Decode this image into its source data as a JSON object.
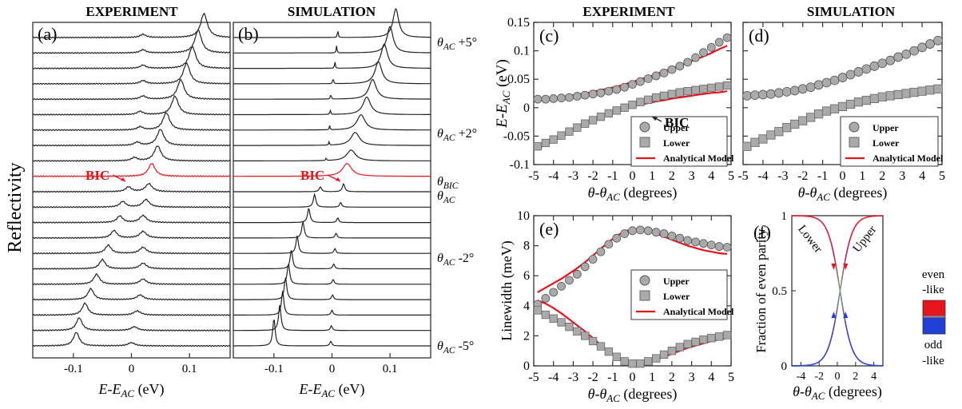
{
  "figure": {
    "headers": {
      "a": "EXPERIMENT",
      "b": "SIMULATION",
      "c": "EXPERIMENT",
      "d": "SIMULATION"
    },
    "left_ylabel": "Reflectivity"
  },
  "chart_data": [
    {
      "panel": "(a)",
      "type": "line",
      "title": "EXPERIMENT",
      "xlabel": "E-E_AC (eV)",
      "ylabel": "Reflectivity",
      "xlim": [
        -0.17,
        0.17
      ],
      "xticks": [
        "-0.1",
        "0",
        "0.1"
      ],
      "annotations": [
        "BIC"
      ],
      "highlight_color": "#e8141c",
      "series_description": "21 stacked reflectivity spectra, angle from θ_AC+5° (top) to θ_AC-5° (bottom); red trace at θ_BIC",
      "upper_peak_eV": [
        0.125,
        0.115,
        0.105,
        0.095,
        0.085,
        0.075,
        0.06,
        0.05,
        0.045,
        0.035,
        0.03,
        0.025,
        0.02,
        0.02,
        0.02,
        0.02,
        0.02,
        0.015,
        0.01,
        0.005,
        0.0
      ],
      "lower_peak_eV": [
        0.02,
        0.02,
        0.02,
        0.02,
        0.02,
        0.015,
        0.015,
        0.01,
        0.005,
        0.0,
        -0.005,
        -0.015,
        -0.02,
        -0.03,
        -0.04,
        -0.05,
        -0.06,
        -0.07,
        -0.08,
        -0.09,
        -0.095
      ]
    },
    {
      "panel": "(b)",
      "type": "line",
      "title": "SIMULATION",
      "xlabel": "E-E_AC (eV)",
      "xlim": [
        -0.17,
        0.17
      ],
      "xticks": [
        "-0.1",
        "0",
        "0.1"
      ],
      "angle_labels": [
        "θAC +5°",
        "θAC +2°",
        "θBIC",
        "θAC",
        "θAC -2°",
        "θAC -5°"
      ],
      "annotations": [
        "BIC"
      ],
      "upper_peak_eV": [
        0.11,
        0.1,
        0.09,
        0.08,
        0.07,
        0.06,
        0.05,
        0.04,
        0.033,
        0.026,
        0.02,
        0.015,
        0.01,
        0.007,
        0.005,
        0.003,
        0.002,
        0.001,
        0.0,
        -0.001,
        -0.002
      ],
      "lower_peak_eV": [
        0.01,
        0.008,
        0.005,
        0.002,
        -0.002,
        -0.003,
        -0.004,
        -0.005,
        -0.01,
        -0.015,
        -0.02,
        -0.03,
        -0.04,
        -0.05,
        -0.06,
        -0.07,
        -0.075,
        -0.08,
        -0.085,
        -0.09,
        -0.1
      ]
    },
    {
      "panel": "(c)",
      "type": "scatter",
      "title": "EXPERIMENT",
      "xlabel": "θ-θAC (degrees)",
      "ylabel": "E-EAC (eV)",
      "xlim": [
        -5,
        5
      ],
      "ylim": [
        -0.1,
        0.15
      ],
      "xticks": [
        -5,
        -4,
        -3,
        -2,
        -1,
        0,
        1,
        2,
        3,
        4,
        5
      ],
      "yticks": [
        "-0.1",
        "-0.05",
        "0",
        "0.05",
        "0.1",
        "0.15"
      ],
      "annotations": [
        "BIC"
      ],
      "legend": [
        "Upper",
        "Lower",
        "Analytical Model"
      ],
      "legend_placement": "bottom-right",
      "x": [
        -4.8,
        -4.4,
        -4.0,
        -3.6,
        -3.2,
        -2.8,
        -2.4,
        -2.0,
        -1.6,
        -1.2,
        -0.8,
        -0.4,
        0.0,
        0.4,
        0.8,
        1.2,
        1.6,
        2.0,
        2.4,
        2.8,
        3.2,
        3.6,
        4.0,
        4.4,
        4.8
      ],
      "series": [
        {
          "name": "Upper",
          "marker": "circle",
          "values": [
            0.015,
            0.015,
            0.016,
            0.017,
            0.018,
            0.02,
            0.022,
            0.024,
            0.026,
            0.029,
            0.032,
            0.036,
            0.041,
            0.046,
            0.051,
            0.056,
            0.061,
            0.067,
            0.073,
            0.08,
            0.088,
            0.097,
            0.106,
            0.115,
            0.123
          ]
        },
        {
          "name": "Lower",
          "marker": "square",
          "values": [
            -0.068,
            -0.062,
            -0.056,
            -0.049,
            -0.042,
            -0.035,
            -0.028,
            -0.022,
            -0.016,
            -0.01,
            -0.005,
            0.0,
            0.005,
            0.01,
            0.014,
            0.018,
            0.021,
            0.024,
            0.027,
            0.029,
            0.031,
            0.033,
            0.035,
            0.037,
            0.039
          ]
        },
        {
          "name": "Analytical Model",
          "color": "#e8141c",
          "upper": [
            0.013,
            0.015,
            0.017,
            0.019,
            0.021,
            0.023,
            0.025,
            0.028,
            0.031,
            0.034,
            0.037,
            0.041,
            0.045,
            0.05,
            0.054,
            0.059,
            0.064,
            0.069,
            0.074,
            0.079,
            0.085,
            0.09,
            0.096,
            0.103,
            0.109
          ],
          "lower": [
            -0.072,
            -0.065,
            -0.057,
            -0.05,
            -0.043,
            -0.036,
            -0.029,
            -0.022,
            -0.016,
            -0.011,
            -0.006,
            -0.002,
            0.002,
            0.005,
            0.008,
            0.011,
            0.013,
            0.016,
            0.018,
            0.02,
            0.022,
            0.024,
            0.026,
            0.027,
            0.029
          ]
        }
      ]
    },
    {
      "panel": "(d)",
      "type": "scatter",
      "title": "SIMULATION",
      "xlabel": "θ-θAC (degrees)",
      "xlim": [
        -5,
        5
      ],
      "ylim": [
        -0.1,
        0.15
      ],
      "xticks": [
        -5,
        -4,
        -3,
        -2,
        -1,
        0,
        1,
        2,
        3,
        4,
        5
      ],
      "legend": [
        "Upper",
        "Lower",
        "Analytical Model"
      ],
      "legend_placement": "bottom-right",
      "x": [
        -4.8,
        -4.4,
        -4.0,
        -3.6,
        -3.2,
        -2.8,
        -2.4,
        -2.0,
        -1.6,
        -1.2,
        -0.8,
        -0.4,
        0.0,
        0.4,
        0.8,
        1.2,
        1.6,
        2.0,
        2.4,
        2.8,
        3.2,
        3.6,
        4.0,
        4.4,
        4.8
      ],
      "series": [
        {
          "name": "Upper",
          "marker": "circle",
          "values": [
            0.021,
            0.022,
            0.023,
            0.024,
            0.026,
            0.028,
            0.03,
            0.033,
            0.036,
            0.04,
            0.044,
            0.048,
            0.053,
            0.058,
            0.063,
            0.068,
            0.073,
            0.078,
            0.083,
            0.089,
            0.094,
            0.1,
            0.106,
            0.112,
            0.118
          ]
        },
        {
          "name": "Lower",
          "marker": "square",
          "values": [
            -0.068,
            -0.061,
            -0.055,
            -0.048,
            -0.042,
            -0.035,
            -0.029,
            -0.023,
            -0.017,
            -0.011,
            -0.006,
            -0.002,
            0.002,
            0.006,
            0.01,
            0.013,
            0.016,
            0.019,
            0.021,
            0.023,
            0.025,
            0.027,
            0.029,
            0.031,
            0.033
          ]
        },
        {
          "name": "Analytical Model",
          "color": "#e8141c",
          "upper": [
            0.021,
            0.022,
            0.023,
            0.024,
            0.026,
            0.028,
            0.03,
            0.033,
            0.036,
            0.04,
            0.044,
            0.048,
            0.053,
            0.058,
            0.063,
            0.068,
            0.073,
            0.078,
            0.083,
            0.089,
            0.094,
            0.1,
            0.106,
            0.112,
            0.118
          ],
          "lower": [
            -0.068,
            -0.061,
            -0.055,
            -0.048,
            -0.042,
            -0.035,
            -0.029,
            -0.023,
            -0.017,
            -0.011,
            -0.006,
            -0.002,
            0.002,
            0.006,
            0.01,
            0.013,
            0.016,
            0.019,
            0.021,
            0.023,
            0.025,
            0.027,
            0.029,
            0.031,
            0.033
          ]
        }
      ]
    },
    {
      "panel": "(e)",
      "type": "scatter",
      "xlabel": "θ-θAC (degrees)",
      "ylabel": "Linewidth (meV)",
      "xlim": [
        -5,
        5
      ],
      "ylim": [
        0,
        10
      ],
      "xticks": [
        -5,
        -4,
        -3,
        -2,
        -1,
        0,
        1,
        2,
        3,
        4,
        5
      ],
      "yticks": [
        0,
        2,
        4,
        6,
        8,
        10
      ],
      "legend": [
        "Upper",
        "Lower",
        "Analytical Model"
      ],
      "legend_placement": "center-right",
      "x": [
        -4.8,
        -4.4,
        -4.0,
        -3.6,
        -3.2,
        -2.8,
        -2.4,
        -2.0,
        -1.6,
        -1.2,
        -0.8,
        -0.4,
        0.0,
        0.4,
        0.8,
        1.2,
        1.6,
        2.0,
        2.4,
        2.8,
        3.2,
        3.6,
        4.0,
        4.4,
        4.8
      ],
      "series": [
        {
          "name": "Upper",
          "marker": "circle",
          "values": [
            4.1,
            4.5,
            4.9,
            5.3,
            5.7,
            6.1,
            6.6,
            7.1,
            7.6,
            8.1,
            8.5,
            8.8,
            9.0,
            9.05,
            9.0,
            8.9,
            8.8,
            8.65,
            8.5,
            8.35,
            8.25,
            8.15,
            8.05,
            7.95,
            7.9
          ]
        },
        {
          "name": "Lower",
          "marker": "square",
          "values": [
            3.7,
            3.4,
            3.15,
            2.9,
            2.6,
            2.3,
            2.0,
            1.65,
            1.3,
            0.95,
            0.6,
            0.3,
            0.15,
            0.15,
            0.3,
            0.5,
            0.75,
            1.0,
            1.25,
            1.45,
            1.6,
            1.75,
            1.85,
            1.95,
            2.05
          ]
        },
        {
          "name": "Analytical Model",
          "color": "#e8141c",
          "upper": [
            4.9,
            5.2,
            5.5,
            5.8,
            6.15,
            6.5,
            6.9,
            7.35,
            7.8,
            8.25,
            8.65,
            8.95,
            9.1,
            9.1,
            9.0,
            8.8,
            8.6,
            8.4,
            8.2,
            8.0,
            7.85,
            7.7,
            7.6,
            7.5,
            7.45
          ],
          "lower": [
            4.35,
            4.15,
            3.85,
            3.5,
            3.1,
            2.7,
            2.3,
            1.85,
            1.4,
            0.95,
            0.55,
            0.25,
            0.1,
            0.12,
            0.25,
            0.4,
            0.6,
            0.8,
            1.0,
            1.2,
            1.35,
            1.5,
            1.65,
            1.75,
            1.85
          ]
        }
      ]
    },
    {
      "panel": "(f)",
      "type": "line",
      "xlabel": "θ-θAC (degrees)",
      "ylabel": "Fraction of even parity",
      "xlim": [
        -5,
        5
      ],
      "ylim": [
        0,
        1
      ],
      "xticks": [
        -4,
        -2,
        0,
        2,
        4
      ],
      "yticks": [
        0,
        0.5,
        1
      ],
      "curve_labels": [
        "Lower",
        "Upper"
      ],
      "colorbar_labels": [
        "even",
        "-like",
        "odd",
        "-like"
      ],
      "colors": {
        "even": "#e8141c",
        "odd": "#1f3fd6"
      },
      "center_x": 0.3,
      "width_deg": 1.3
    }
  ]
}
